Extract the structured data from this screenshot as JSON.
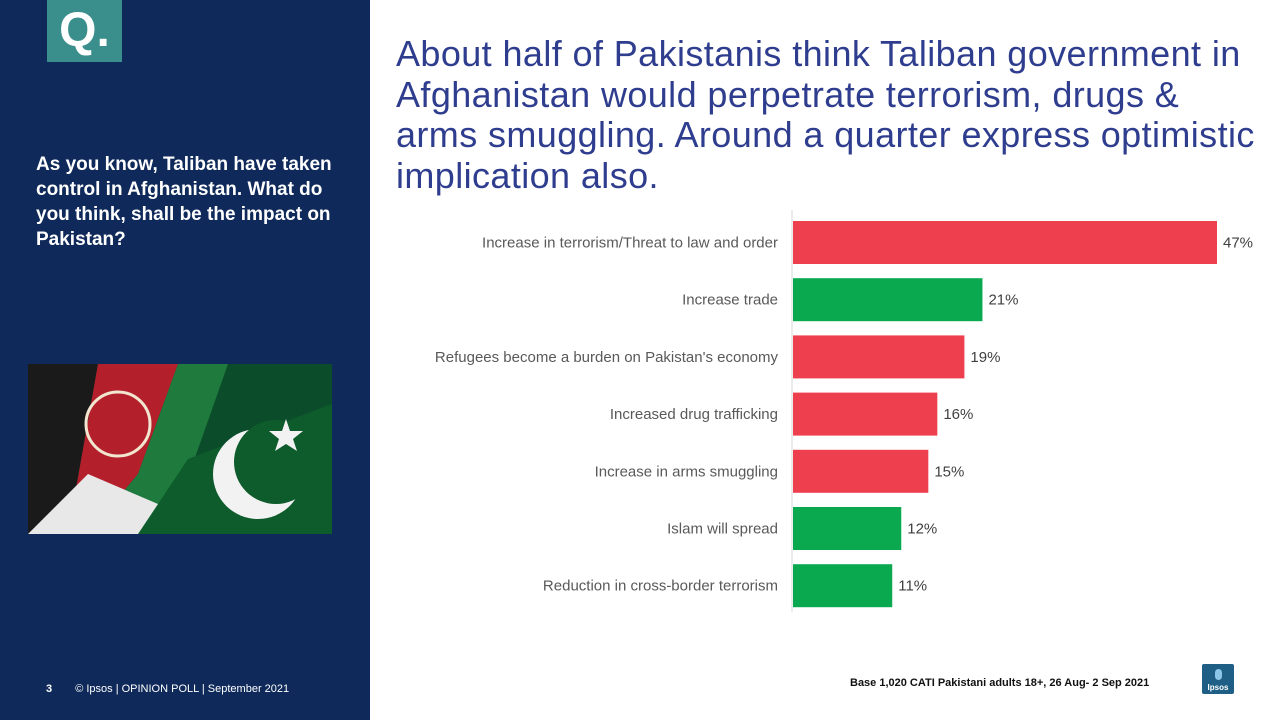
{
  "badge": {
    "label": "Q."
  },
  "question": "As you know, Taliban have taken control in Afghanistan. What do you think, shall be the impact on Pakistan?",
  "headline": "About half of Pakistanis think Taliban government in Afghanistan would perpetrate terrorism, drugs & arms smuggling. Around a quarter express optimistic implication also.",
  "footer": {
    "page_number": "3",
    "copyright": "© Ipsos | OPINION POLL | September 2021"
  },
  "base_note": "Base 1,020 CATI Pakistani adults 18+, 26 Aug- 2 Sep 2021",
  "logo": {
    "text": "Ipsos"
  },
  "colors": {
    "negative": "#ee3f4f",
    "positive": "#0aa94f",
    "panel": "#0f2a5a",
    "headline": "#2f3d8f"
  },
  "chart_data": {
    "type": "bar",
    "orientation": "horizontal",
    "categories": [
      "Increase in terrorism/Threat to law and order",
      "Increase trade",
      "Refugees become a burden on Pakistan's economy",
      "Increased drug trafficking",
      "Increase in arms smuggling",
      "Islam will spread",
      "Reduction in cross-border terrorism"
    ],
    "values": [
      47,
      21,
      19,
      16,
      15,
      12,
      11
    ],
    "value_labels": [
      "47%",
      "21%",
      "19%",
      "16%",
      "15%",
      "12%",
      "11%"
    ],
    "sentiment": [
      "negative",
      "positive",
      "negative",
      "negative",
      "negative",
      "positive",
      "positive"
    ],
    "xlim": [
      0,
      47
    ],
    "grid": false,
    "legend": "none"
  }
}
